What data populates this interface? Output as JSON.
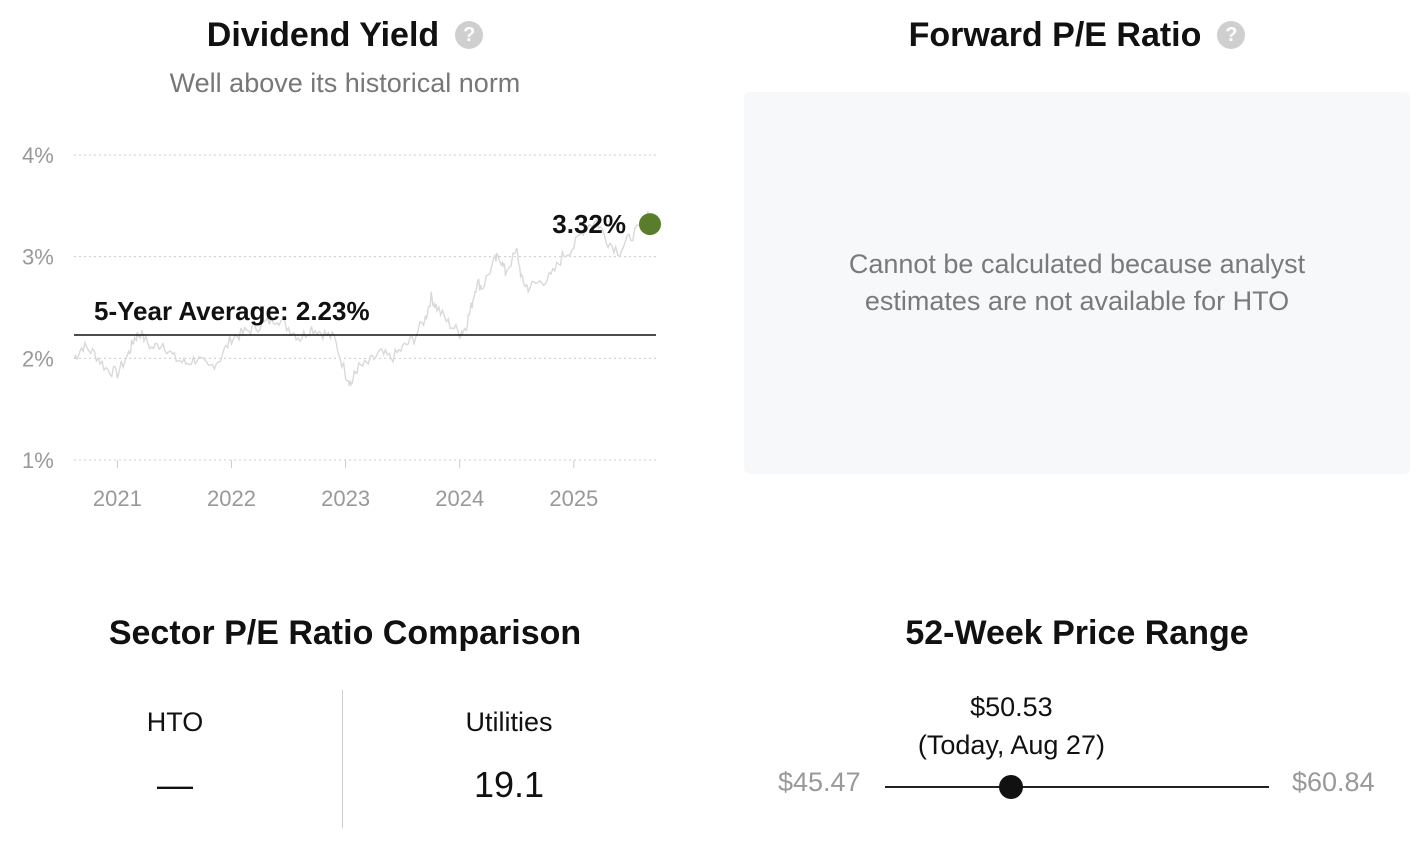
{
  "dividend_yield": {
    "title": "Dividend Yield",
    "subtitle": "Well above its historical norm",
    "average_label": "5-Year Average: 2.23%",
    "current_label": "3.32%",
    "help_icon": "question-circle-icon"
  },
  "chart_data": {
    "type": "line",
    "x_ticks": [
      "2021",
      "2022",
      "2023",
      "2024",
      "2025"
    ],
    "y_ticks": [
      "1%",
      "2%",
      "3%",
      "4%"
    ],
    "ylim": [
      1,
      4
    ],
    "xlim": [
      2020.62,
      2025.72
    ],
    "grid": "horizontal dotted",
    "series": [
      {
        "x": [
          2020.62,
          2020.7,
          2020.8,
          2020.9,
          2021.0,
          2021.1,
          2021.15,
          2021.2,
          2021.3,
          2021.4,
          2021.5,
          2021.6,
          2021.7,
          2021.8,
          2021.9,
          2022.0,
          2022.1,
          2022.2,
          2022.3,
          2022.4,
          2022.5,
          2022.6,
          2022.7,
          2022.8,
          2022.9,
          2023.0,
          2023.05,
          2023.1,
          2023.2,
          2023.3,
          2023.4,
          2023.5,
          2023.6,
          2023.7,
          2023.75,
          2023.8,
          2023.9,
          2024.0,
          2024.05,
          2024.1,
          2024.15,
          2024.2,
          2024.3,
          2024.35,
          2024.4,
          2024.5,
          2024.55,
          2024.6,
          2024.7,
          2024.8,
          2024.9,
          2025.0,
          2025.1,
          2025.2,
          2025.3,
          2025.4,
          2025.5,
          2025.6,
          2025.65
        ],
        "y": [
          2.0,
          2.12,
          2.05,
          1.9,
          1.85,
          2.05,
          2.2,
          2.25,
          2.1,
          2.15,
          2.0,
          1.95,
          2.0,
          1.9,
          2.0,
          2.2,
          2.25,
          2.3,
          2.35,
          2.4,
          2.3,
          2.2,
          2.3,
          2.25,
          2.2,
          1.85,
          1.75,
          1.9,
          1.95,
          2.05,
          2.0,
          2.1,
          2.2,
          2.4,
          2.6,
          2.5,
          2.35,
          2.25,
          2.3,
          2.5,
          2.75,
          2.7,
          2.95,
          3.0,
          2.85,
          3.05,
          2.75,
          2.7,
          2.75,
          2.8,
          3.0,
          3.1,
          3.3,
          3.35,
          3.15,
          3.05,
          3.2,
          3.3,
          3.45
        ]
      }
    ],
    "average": 2.23,
    "current": 3.32,
    "colors": {
      "line": "#d9d9d9",
      "average_line": "#111111",
      "current_dot": "#5a7d2c"
    }
  },
  "forward_pe": {
    "title": "Forward P/E Ratio",
    "message": "Cannot be calculated because analyst estimates are not available for HTO",
    "help_icon": "question-circle-icon"
  },
  "sector_pe": {
    "title": "Sector P/E Ratio Comparison",
    "company_label": "HTO",
    "company_value": "—",
    "sector_label": "Utilities",
    "sector_value": "19.1"
  },
  "price_range": {
    "title": "52-Week Price Range",
    "low": "$45.47",
    "high": "$60.84",
    "current_price": "$50.53",
    "current_date": "(Today, Aug 27)",
    "low_value": 45.47,
    "high_value": 60.84,
    "current_value": 50.53
  }
}
